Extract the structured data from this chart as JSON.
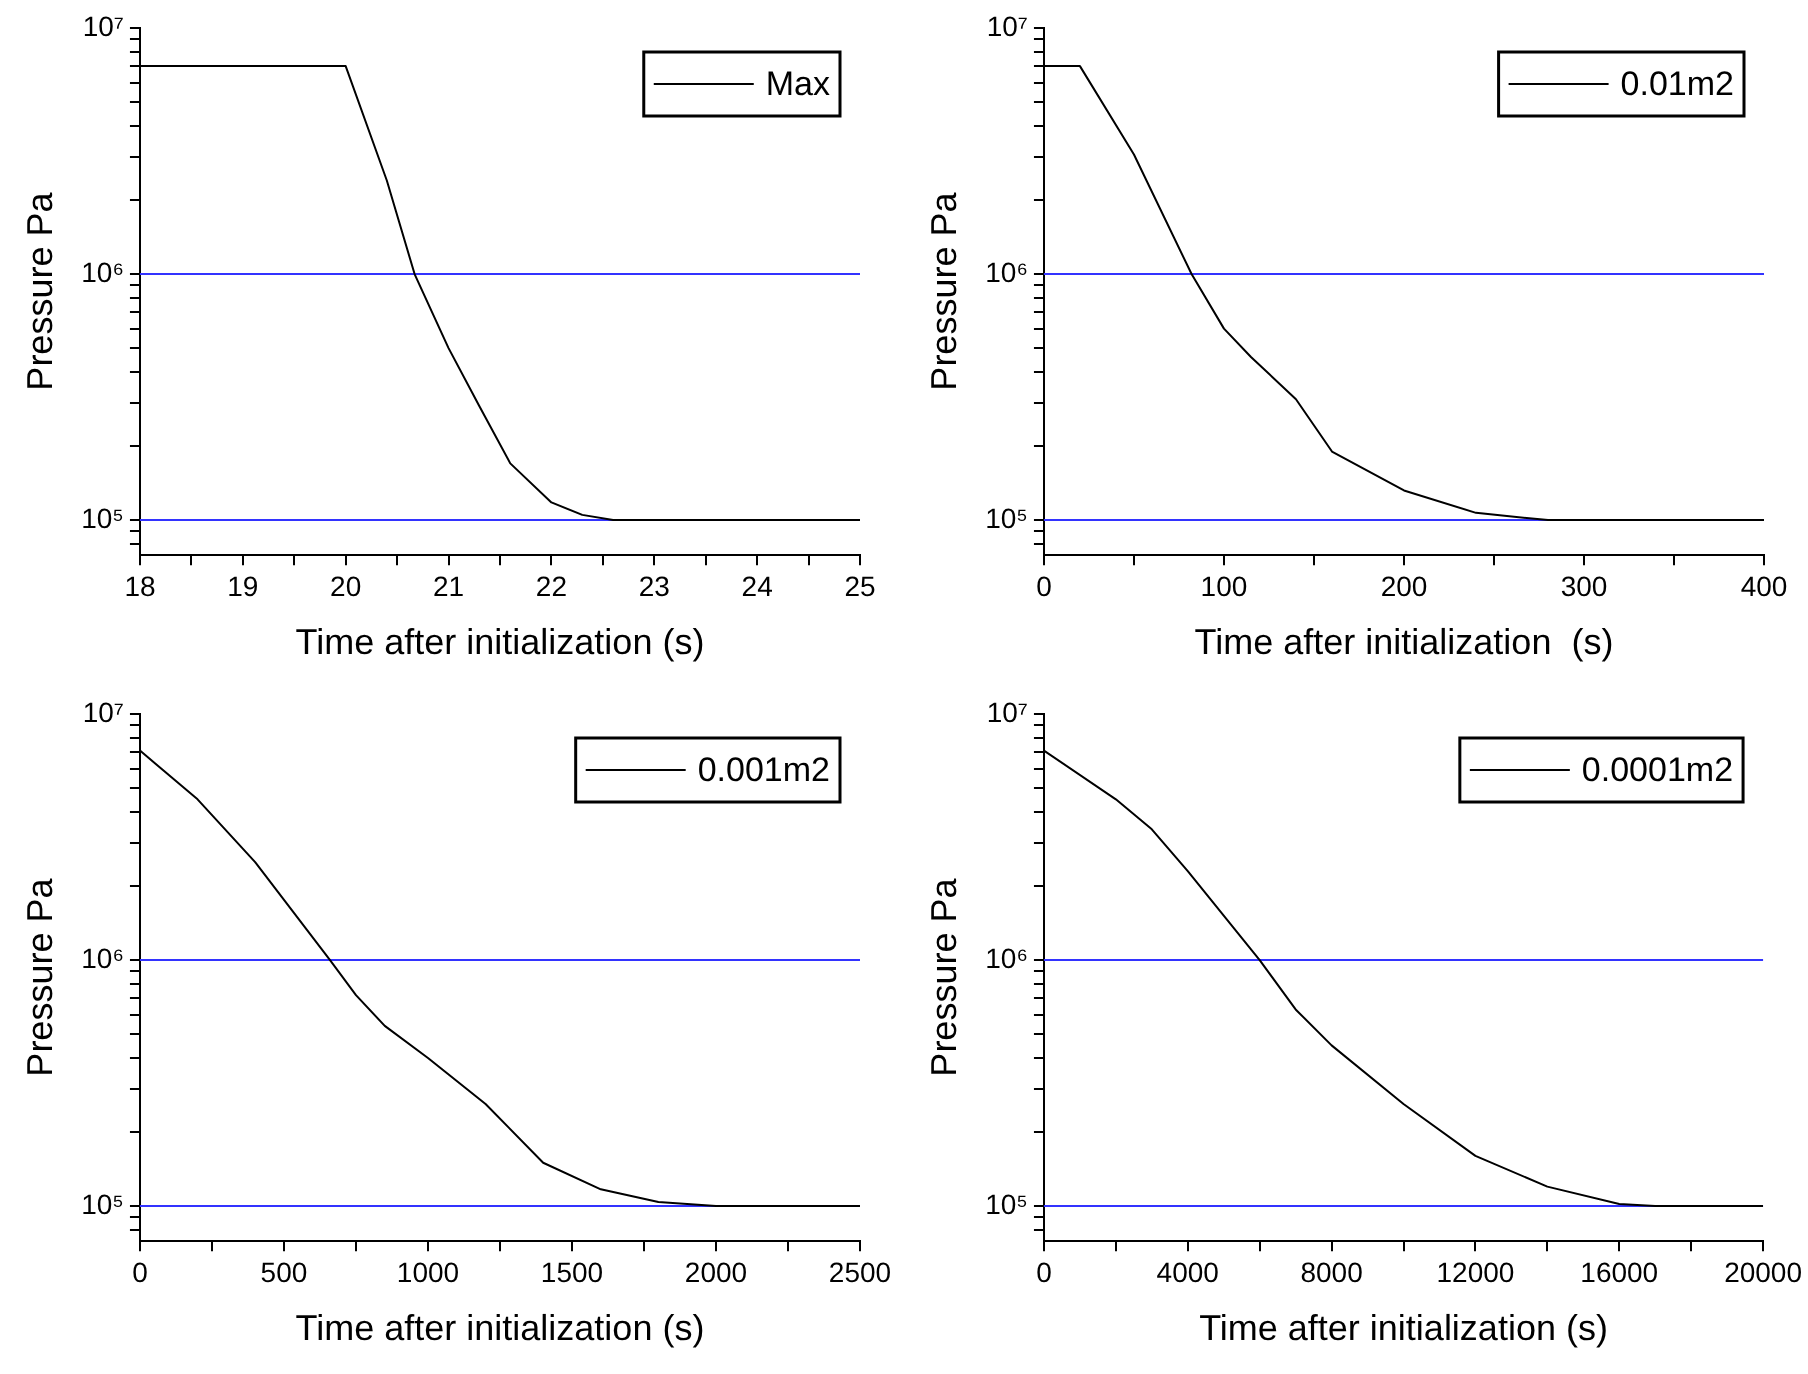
{
  "chart_data": [
    {
      "type": "line",
      "xlabel": "Time after initialization (s)",
      "ylabel": "Pressure Pa",
      "log": "y",
      "marker": "none",
      "legend": "top right",
      "x": [
        18,
        20,
        20.4,
        20.67,
        21,
        21.3,
        21.6,
        22,
        22.3,
        22.6,
        23,
        25
      ],
      "series": [
        {
          "name": "Max",
          "color": "#000000",
          "values": [
            7000000,
            7000000,
            2400000,
            1000000,
            500000,
            290000,
            170000,
            118000,
            105000,
            100000,
            100000,
            100000
          ]
        }
      ],
      "xlim": [
        18,
        25
      ],
      "xticks": [
        18,
        {
          "value": 18.5,
          "label": null
        },
        19,
        {
          "value": 19.5,
          "label": null
        },
        20,
        {
          "value": 20.5,
          "label": null
        },
        21,
        {
          "value": 21.5,
          "label": null
        },
        22,
        {
          "value": 22.5,
          "label": null
        },
        23,
        {
          "value": 23.5,
          "label": null
        },
        24,
        {
          "value": 24.5,
          "label": null
        },
        25
      ],
      "ylim": [
        72000,
        10000000
      ],
      "yticks": [
        {
          "value": 80000,
          "label": null
        },
        {
          "value": 90000,
          "label": null
        },
        {
          "value": 100000,
          "label": "10⁵"
        },
        {
          "value": 200000,
          "label": null
        },
        {
          "value": 300000,
          "label": null
        },
        {
          "value": 400000,
          "label": null
        },
        {
          "value": 500000,
          "label": null
        },
        {
          "value": 600000,
          "label": null
        },
        {
          "value": 700000,
          "label": null
        },
        {
          "value": 800000,
          "label": null
        },
        {
          "value": 900000,
          "label": null
        },
        {
          "value": 1000000,
          "label": "10⁶"
        },
        {
          "value": 2000000,
          "label": null
        },
        {
          "value": 3000000,
          "label": null
        },
        {
          "value": 4000000,
          "label": null
        },
        {
          "value": 5000000,
          "label": null
        },
        {
          "value": 6000000,
          "label": null
        },
        {
          "value": 7000000,
          "label": null
        },
        {
          "value": 8000000,
          "label": null
        },
        {
          "value": 9000000,
          "label": null
        },
        {
          "value": 10000000,
          "label": "10⁷"
        }
      ],
      "ref_lines": [
        {
          "axis": "y",
          "value": 1000000,
          "color": "#3333ff"
        },
        {
          "axis": "y",
          "value": 100000,
          "color": "#3333ff"
        }
      ]
    },
    {
      "type": "line",
      "xlabel": "Time after initialization  (s)",
      "ylabel": "Pressure Pa",
      "log": "y",
      "marker": "none",
      "legend": "top right",
      "x": [
        0,
        20,
        50,
        82,
        100,
        115,
        140,
        160,
        200,
        240,
        280,
        300,
        400
      ],
      "series": [
        {
          "name": "0.01m2",
          "color": "#000000",
          "values": [
            7000000,
            7000000,
            3060000,
            1000000,
            600000,
            460000,
            310000,
            190000,
            132000,
            107000,
            100000,
            100000,
            100000
          ]
        }
      ],
      "xlim": [
        0,
        400
      ],
      "xticks": [
        0,
        {
          "value": 50,
          "label": null
        },
        100,
        {
          "value": 150,
          "label": null
        },
        200,
        {
          "value": 250,
          "label": null
        },
        300,
        {
          "value": 350,
          "label": null
        },
        400
      ],
      "ylim": [
        72000,
        10000000
      ],
      "yticks": [
        {
          "value": 80000,
          "label": null
        },
        {
          "value": 90000,
          "label": null
        },
        {
          "value": 100000,
          "label": "10⁵"
        },
        {
          "value": 200000,
          "label": null
        },
        {
          "value": 300000,
          "label": null
        },
        {
          "value": 400000,
          "label": null
        },
        {
          "value": 500000,
          "label": null
        },
        {
          "value": 600000,
          "label": null
        },
        {
          "value": 700000,
          "label": null
        },
        {
          "value": 800000,
          "label": null
        },
        {
          "value": 900000,
          "label": null
        },
        {
          "value": 1000000,
          "label": "10⁶"
        },
        {
          "value": 2000000,
          "label": null
        },
        {
          "value": 3000000,
          "label": null
        },
        {
          "value": 4000000,
          "label": null
        },
        {
          "value": 5000000,
          "label": null
        },
        {
          "value": 6000000,
          "label": null
        },
        {
          "value": 7000000,
          "label": null
        },
        {
          "value": 8000000,
          "label": null
        },
        {
          "value": 9000000,
          "label": null
        },
        {
          "value": 10000000,
          "label": "10⁷"
        }
      ],
      "ref_lines": [
        {
          "axis": "y",
          "value": 1000000,
          "color": "#3333ff"
        },
        {
          "axis": "y",
          "value": 100000,
          "color": "#3333ff"
        }
      ]
    },
    {
      "type": "line",
      "xlabel": "Time after initialization (s)",
      "ylabel": "Pressure Pa",
      "log": "y",
      "marker": "none",
      "legend": "top right",
      "x": [
        0,
        200,
        400,
        660,
        750,
        850,
        1000,
        1200,
        1400,
        1600,
        1800,
        2000,
        2500
      ],
      "series": [
        {
          "name": "0.001m2",
          "color": "#000000",
          "values": [
            7100000,
            4500000,
            2500000,
            1000000,
            720000,
            540000,
            400000,
            260000,
            150000,
            117000,
            104000,
            100000,
            100000
          ]
        }
      ],
      "xlim": [
        0,
        2500
      ],
      "xticks": [
        0,
        {
          "value": 250,
          "label": null
        },
        500,
        {
          "value": 750,
          "label": null
        },
        1000,
        {
          "value": 1250,
          "label": null
        },
        1500,
        {
          "value": 1750,
          "label": null
        },
        2000,
        {
          "value": 2250,
          "label": null
        },
        2500
      ],
      "ylim": [
        72000,
        10000000
      ],
      "yticks": [
        {
          "value": 80000,
          "label": null
        },
        {
          "value": 90000,
          "label": null
        },
        {
          "value": 100000,
          "label": "10⁵"
        },
        {
          "value": 200000,
          "label": null
        },
        {
          "value": 300000,
          "label": null
        },
        {
          "value": 400000,
          "label": null
        },
        {
          "value": 500000,
          "label": null
        },
        {
          "value": 600000,
          "label": null
        },
        {
          "value": 700000,
          "label": null
        },
        {
          "value": 800000,
          "label": null
        },
        {
          "value": 900000,
          "label": null
        },
        {
          "value": 1000000,
          "label": "10⁶"
        },
        {
          "value": 2000000,
          "label": null
        },
        {
          "value": 3000000,
          "label": null
        },
        {
          "value": 4000000,
          "label": null
        },
        {
          "value": 5000000,
          "label": null
        },
        {
          "value": 6000000,
          "label": null
        },
        {
          "value": 7000000,
          "label": null
        },
        {
          "value": 8000000,
          "label": null
        },
        {
          "value": 9000000,
          "label": null
        },
        {
          "value": 10000000,
          "label": "10⁷"
        }
      ],
      "ref_lines": [
        {
          "axis": "y",
          "value": 1000000,
          "color": "#3333ff"
        },
        {
          "axis": "y",
          "value": 100000,
          "color": "#3333ff"
        }
      ]
    },
    {
      "type": "line",
      "xlabel": "Time after initialization (s)",
      "ylabel": "Pressure Pa",
      "log": "y",
      "marker": "none",
      "legend": "top right",
      "x": [
        0,
        2000,
        3000,
        4000,
        6000,
        7000,
        8000,
        10000,
        12000,
        14000,
        16000,
        17000,
        20000
      ],
      "series": [
        {
          "name": "0.0001m2",
          "color": "#000000",
          "values": [
            7100000,
            4500000,
            3400000,
            2300000,
            1000000,
            630000,
            450000,
            260000,
            160000,
            120000,
            102000,
            100000,
            100000
          ]
        }
      ],
      "xlim": [
        0,
        20000
      ],
      "xticks": [
        0,
        {
          "value": 2000,
          "label": null
        },
        4000,
        {
          "value": 6000,
          "label": null
        },
        8000,
        {
          "value": 10000,
          "label": null
        },
        12000,
        {
          "value": 14000,
          "label": null
        },
        16000,
        {
          "value": 18000,
          "label": null
        },
        20000
      ],
      "ylim": [
        72000,
        10000000
      ],
      "yticks": [
        {
          "value": 80000,
          "label": null
        },
        {
          "value": 90000,
          "label": null
        },
        {
          "value": 100000,
          "label": "10⁵"
        },
        {
          "value": 200000,
          "label": null
        },
        {
          "value": 300000,
          "label": null
        },
        {
          "value": 400000,
          "label": null
        },
        {
          "value": 500000,
          "label": null
        },
        {
          "value": 600000,
          "label": null
        },
        {
          "value": 700000,
          "label": null
        },
        {
          "value": 800000,
          "label": null
        },
        {
          "value": 900000,
          "label": null
        },
        {
          "value": 1000000,
          "label": "10⁶"
        },
        {
          "value": 2000000,
          "label": null
        },
        {
          "value": 3000000,
          "label": null
        },
        {
          "value": 4000000,
          "label": null
        },
        {
          "value": 5000000,
          "label": null
        },
        {
          "value": 6000000,
          "label": null
        },
        {
          "value": 7000000,
          "label": null
        },
        {
          "value": 8000000,
          "label": null
        },
        {
          "value": 9000000,
          "label": null
        },
        {
          "value": 10000000,
          "label": "10⁷"
        }
      ],
      "ref_lines": [
        {
          "axis": "y",
          "value": 1000000,
          "color": "#3333ff"
        },
        {
          "axis": "y",
          "value": 100000,
          "color": "#3333ff"
        }
      ]
    }
  ]
}
